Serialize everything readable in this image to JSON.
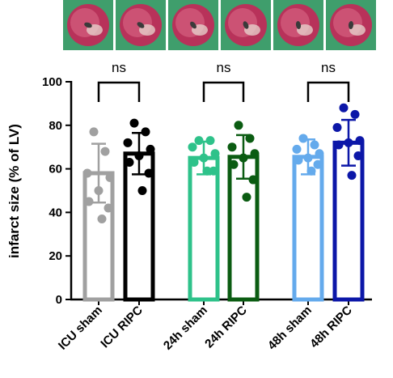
{
  "chart_data": {
    "type": "bar",
    "categories": [
      "ICU sham",
      "ICU RIPC",
      "24h sham",
      "24h RIPC",
      "48h sham",
      "48h RIPC"
    ],
    "series": [
      {
        "values": [
          58,
          67,
          65,
          65.5,
          65.5,
          72
        ],
        "sd": [
          13.5,
          9.5,
          7.5,
          10,
          8,
          10.5
        ],
        "points": [
          [
            77,
            68,
            58,
            56,
            50,
            45,
            42,
            37
          ],
          [
            81,
            77,
            72,
            69,
            66,
            63,
            58,
            50
          ],
          [
            73,
            73,
            70,
            67,
            65,
            63,
            59,
            59
          ],
          [
            80,
            74,
            70,
            67,
            65,
            62,
            55,
            47
          ],
          [
            74,
            71,
            69,
            67,
            65,
            64,
            62,
            59
          ],
          [
            88,
            85,
            79,
            73,
            72,
            71,
            66,
            57
          ]
        ]
      }
    ],
    "colors": [
      "#a0a0a0",
      "#000000",
      "#2ec28a",
      "#0b5c12",
      "#64aaec",
      "#0c17a8"
    ],
    "ylabel": "infarct size (% of LV)",
    "ylim": [
      0,
      100
    ],
    "yticks": [
      0,
      20,
      40,
      60,
      80,
      100
    ],
    "comparisons": [
      {
        "pair": [
          "ICU sham",
          "ICU RIPC"
        ],
        "label": "ns"
      },
      {
        "pair": [
          "24h sham",
          "24h RIPC"
        ],
        "label": "ns"
      },
      {
        "pair": [
          "48h sham",
          "48h RIPC"
        ],
        "label": "ns"
      }
    ],
    "grid": false,
    "legend": "none"
  },
  "images": [
    {
      "name": "heart-section-1"
    },
    {
      "name": "heart-section-2"
    },
    {
      "name": "heart-section-3"
    },
    {
      "name": "heart-section-4"
    },
    {
      "name": "heart-section-5"
    },
    {
      "name": "heart-section-6"
    }
  ]
}
